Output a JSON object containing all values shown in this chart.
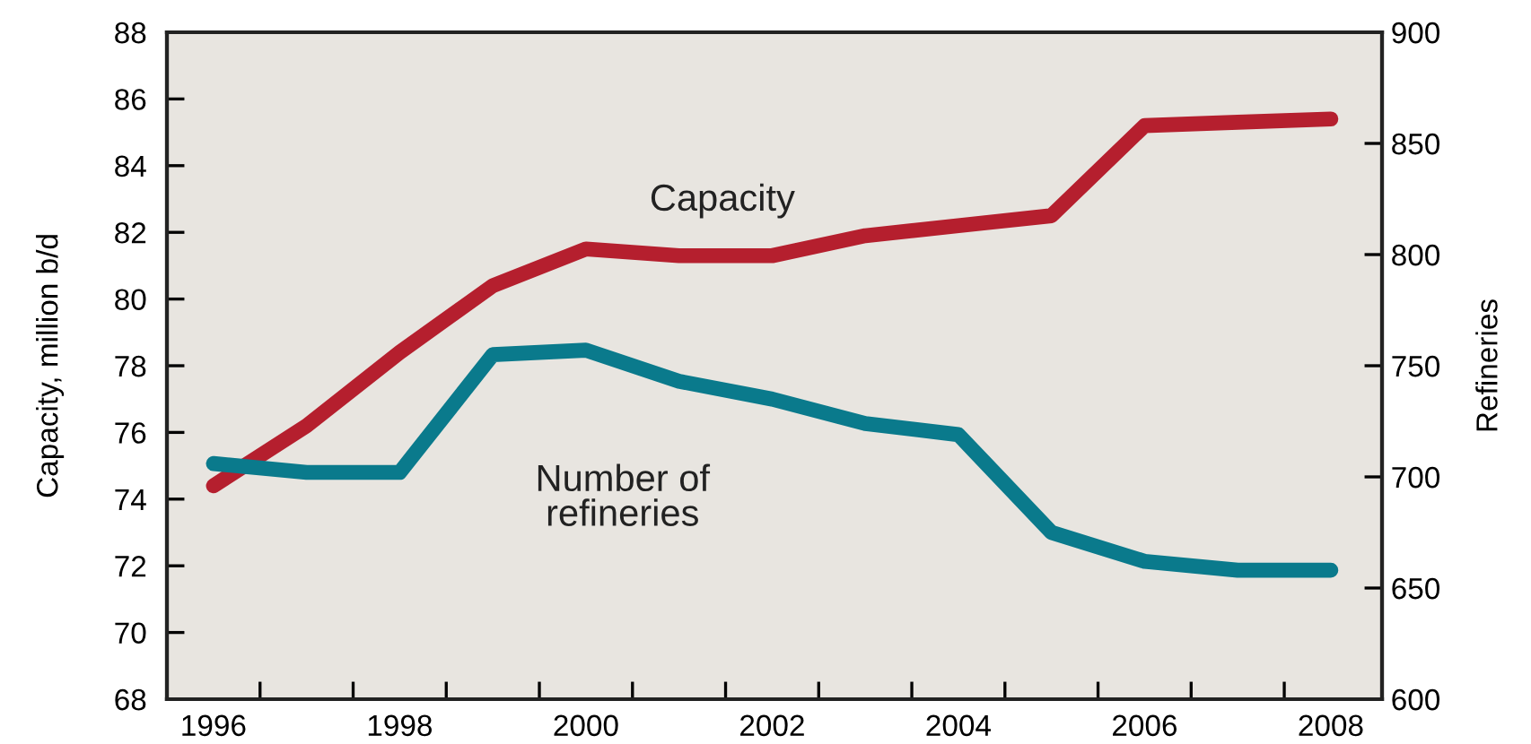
{
  "chart_data": {
    "type": "line",
    "ylabel": "Capacity, million b/d",
    "y2label": "Refineries",
    "x": [
      1996,
      1997,
      1998,
      1999,
      2000,
      2001,
      2002,
      2003,
      2004,
      2005,
      2006,
      2007,
      2008
    ],
    "series": [
      {
        "name": "Capacity",
        "color": "#b51f2e",
        "values": [
          74.4,
          76.2,
          78.4,
          80.4,
          81.5,
          81.3,
          81.3,
          81.9,
          82.2,
          82.5,
          85.2,
          85.3,
          85.4
        ]
      },
      {
        "name": "Number of\nrefineries",
        "color": "#0a7a8c",
        "axis": "y2",
        "values": [
          706,
          702,
          702,
          755,
          757,
          743,
          735,
          724,
          719,
          675,
          662,
          658,
          658
        ]
      }
    ],
    "xlim": [
      1995.5,
      2008.55
    ],
    "xticks": [
      {
        "value": 1996,
        "label": "1996"
      },
      {
        "value": 1996.5,
        "label": null
      },
      {
        "value": 1997.5,
        "label": null
      },
      {
        "value": 1998,
        "label": "1998"
      },
      {
        "value": 1998.5,
        "label": null
      },
      {
        "value": 1999.5,
        "label": null
      },
      {
        "value": 2000,
        "label": "2000"
      },
      {
        "value": 2000.5,
        "label": null
      },
      {
        "value": 2001.5,
        "label": null
      },
      {
        "value": 2002,
        "label": "2002"
      },
      {
        "value": 2002.5,
        "label": null
      },
      {
        "value": 2003.5,
        "label": null
      },
      {
        "value": 2004,
        "label": "2004"
      },
      {
        "value": 2004.5,
        "label": null
      },
      {
        "value": 2005.5,
        "label": null
      },
      {
        "value": 2006,
        "label": "2006"
      },
      {
        "value": 2006.5,
        "label": null
      },
      {
        "value": 2007.5,
        "label": null
      },
      {
        "value": 2008,
        "label": "2008"
      }
    ],
    "ylim": [
      68,
      88
    ],
    "yticks": [
      68,
      70,
      72,
      74,
      76,
      78,
      80,
      82,
      84,
      86,
      88
    ],
    "y2lim": [
      600,
      900
    ],
    "y2ticks": [
      600,
      650,
      700,
      750,
      800,
      850,
      900
    ],
    "grid": false,
    "legend": false,
    "marker": "none",
    "line_style": "solid"
  }
}
